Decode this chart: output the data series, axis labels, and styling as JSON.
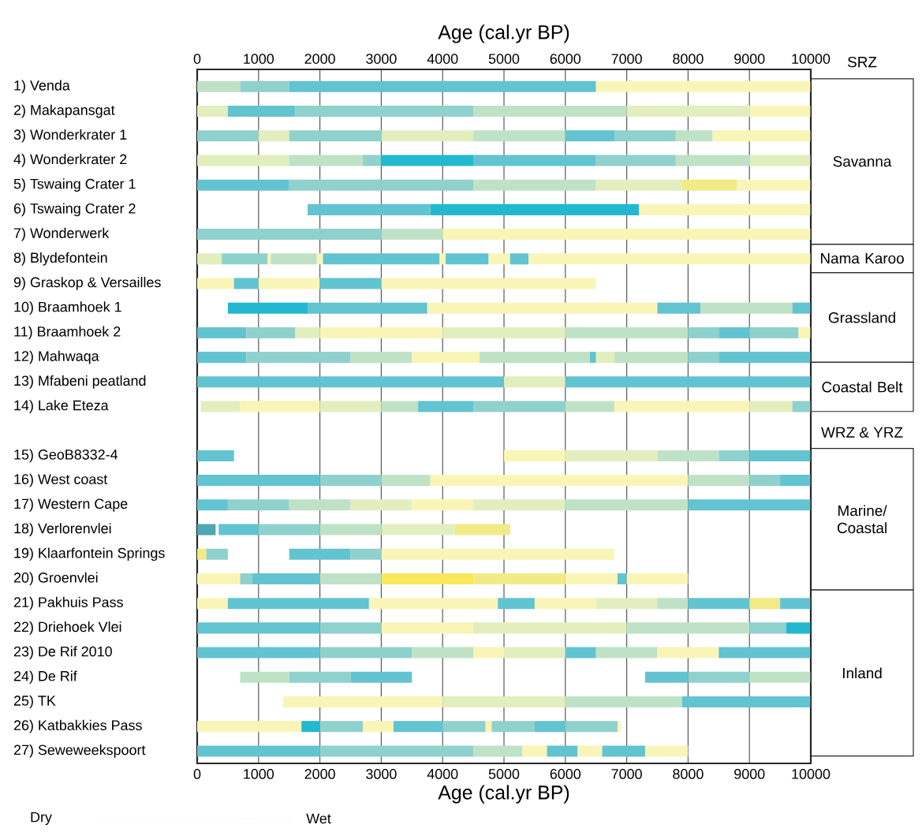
{
  "chart_data": {
    "type": "bar",
    "orientation": "horizontal",
    "grid": "x",
    "xlabel": "Age (cal.yr BP)",
    "x2label": "Age (cal.yr BP)",
    "xlim": [
      0,
      10000
    ],
    "xticks": [
      0,
      1000,
      2000,
      3000,
      4000,
      5000,
      6000,
      7000,
      8000,
      9000,
      10000
    ],
    "x2lim": [
      0,
      10000
    ],
    "x2ticks": [
      0,
      1000,
      2000,
      3000,
      4000,
      5000,
      6000,
      7000,
      8000,
      9000,
      10000
    ],
    "categories": [
      "1) Venda",
      "2) Makapansgat",
      "3) Wonderkrater 1",
      "4) Wonderkrater 2",
      "5) Tswaing Crater 1",
      "6) Tswaing Crater 2",
      "7) Wonderwerk",
      "8) Blydefontein",
      "9) Graskop & Versailles",
      "10) Braamhoek 1",
      "11) Braamhoek 2",
      "12) Mahwaqa",
      "13) Mfabeni peatland",
      "14) Lake Eteza",
      null,
      "15) GeoB8332-4",
      "16) West coast",
      "17) Western Cape",
      "18) Verlorenvlei",
      "19) Klaarfontein Springs",
      "20) Groenvlei",
      "21) Pakhuis Pass",
      "22) Driehoek Vlei",
      "23) De Rif 2010",
      "24) De Rif",
      "25) TK",
      "26) Katbakkies Pass",
      "27) Seweweekspoort"
    ],
    "series": [
      {
        "base": [
          0,
          0,
          0,
          0,
          0,
          1800,
          0,
          0,
          0,
          500,
          0,
          0,
          0,
          60,
          null,
          0,
          0,
          0,
          0,
          0,
          0,
          0,
          0,
          0,
          700,
          1400,
          0,
          0
        ],
        "values": [
          700,
          500,
          1000,
          1500,
          1500,
          2000,
          3000,
          400,
          600,
          1300,
          800,
          800,
          5000,
          640,
          null,
          600,
          2000,
          500,
          300,
          150,
          700,
          500,
          2000,
          2000,
          800,
          2600,
          1700,
          2000
        ],
        "colors": [
          "#bfe2c6",
          "#e2eebe",
          "#8fd1cc",
          "#e2eebe",
          "#62c3d1",
          "#62c3d1",
          "#8fd1cc",
          "#e2eebe",
          "#f9f5b7",
          "#22b8d0",
          "#62c3d1",
          "#62c3d1",
          "#62c3d1",
          "#e2eebe",
          null,
          "#62c3d1",
          "#62c3d1",
          "#62c3d1",
          "#4ea6b2",
          "#f2ea86",
          "#f9f5b7",
          "#f9f5b7",
          "#62c3d1",
          "#62c3d1",
          "#bfe2c6",
          "#f9f5b7",
          "#f9f5b7",
          "#62c3d1"
        ]
      },
      {
        "base": [
          700,
          500,
          1000,
          1500,
          1500,
          3800,
          3000,
          400,
          600,
          1800,
          800,
          800,
          5000,
          700,
          null,
          5000,
          2000,
          500,
          350,
          150,
          700,
          500,
          2000,
          2000,
          1500,
          4000,
          1700,
          2000
        ],
        "values": [
          800,
          1100,
          500,
          1200,
          3000,
          3400,
          1000,
          750,
          400,
          1950,
          800,
          1700,
          1000,
          1300,
          null,
          1000,
          1000,
          1000,
          650,
          350,
          200,
          2300,
          1000,
          1500,
          1000,
          2000,
          300,
          2500
        ],
        "colors": [
          "#8fd1cc",
          "#62c3d1",
          "#e2eebe",
          "#bfe2c6",
          "#8fd1cc",
          "#22b8d0",
          "#bfe2c6",
          "#8fd1cc",
          "#62c3d1",
          "#62c3d1",
          "#8fd1cc",
          "#8fd1cc",
          "#e2eebe",
          "#f9f5b7",
          null,
          "#f9f5b7",
          "#8fd1cc",
          "#8fd1cc",
          "#62c3d1",
          "#8fd1cc",
          "#8fd1cc",
          "#62c3d1",
          "#8fd1cc",
          "#8fd1cc",
          "#8fd1cc",
          "#e2eebe",
          "#22b8d0",
          "#8fd1cc"
        ]
      },
      {
        "base": [
          1500,
          1600,
          1500,
          2700,
          4500,
          7200,
          4000,
          1150,
          1000,
          3750,
          1600,
          2500,
          6000,
          2000,
          null,
          6000,
          3000,
          1500,
          1000,
          1500,
          900,
          2800,
          3000,
          3500,
          2500,
          6000,
          2000,
          4500
        ],
        "values": [
          5000,
          2900,
          1500,
          300,
          2000,
          2800,
          6000,
          50,
          1000,
          3750,
          400,
          1000,
          4000,
          1000,
          null,
          1500,
          800,
          1000,
          1000,
          1000,
          1100,
          2100,
          1500,
          1000,
          1000,
          1900,
          700,
          800
        ],
        "colors": [
          "#62c3d1",
          "#8fd1cc",
          "#8fd1cc",
          "#8fd1cc",
          "#bfe2c6",
          "#f9f5b7",
          "#f9f5b7",
          "#f9f5b7",
          "#f9f5b7",
          "#f9f5b7",
          "#e2eebe",
          "#bfe2c6",
          "#62c3d1",
          "#e2eebe",
          null,
          "#e2eebe",
          "#bfe2c6",
          "#bfe2c6",
          "#8fd1cc",
          "#62c3d1",
          "#62c3d1",
          "#f9f5b7",
          "#f9f5b7",
          "#bfe2c6",
          "#62c3d1",
          "#bfe2c6",
          "#8fd1cc",
          "#bfe2c6"
        ]
      },
      {
        "base": [
          6500,
          4500,
          3000,
          3000,
          6500,
          null,
          null,
          1200,
          2000,
          7500,
          2000,
          3500,
          null,
          3000,
          null,
          7500,
          3800,
          2500,
          2000,
          2500,
          2000,
          4900,
          4500,
          4500,
          7300,
          7900,
          2700,
          5300
        ],
        "values": [
          3500,
          2500,
          1500,
          1500,
          1400,
          null,
          null,
          750,
          1000,
          700,
          2000,
          1100,
          null,
          600,
          null,
          1000,
          4200,
          1000,
          1000,
          500,
          1000,
          600,
          2500,
          500,
          700,
          2100,
          500,
          400
        ],
        "colors": [
          "#f9f5b7",
          "#bfe2c6",
          "#e2eebe",
          "#22b8d0",
          "#e2eebe",
          null,
          null,
          "#bfe2c6",
          "#62c3d1",
          "#62c3d1",
          "#f9f5b7",
          "#f9f5b7",
          null,
          "#bfe2c6",
          null,
          "#bfe2c6",
          "#f9f5b7",
          "#e2eebe",
          "#bfe2c6",
          "#8fd1cc",
          "#bfe2c6",
          "#62c3d1",
          "#e2eebe",
          "#f9f5b7",
          "#62c3d1",
          "#62c3d1",
          "#f9f5b7",
          "#f9f5b7"
        ]
      },
      {
        "base": [
          null,
          7000,
          4500,
          4500,
          7900,
          null,
          null,
          1950,
          3000,
          8200,
          4000,
          4600,
          null,
          3600,
          null,
          8500,
          8000,
          3500,
          3000,
          3000,
          3000,
          5500,
          7000,
          5000,
          8000,
          null,
          3200,
          5700
        ],
        "values": [
          null,
          2000,
          1500,
          2000,
          900,
          null,
          null,
          100,
          3500,
          1500,
          2000,
          1800,
          null,
          900,
          null,
          500,
          1000,
          1000,
          1200,
          3800,
          1500,
          1000,
          2000,
          1000,
          1000,
          null,
          800,
          500
        ],
        "colors": [
          null,
          "#e2eebe",
          "#bfe2c6",
          "#62c3d1",
          "#f2ea86",
          null,
          null,
          "#f9f5b7",
          "#f9f5b7",
          "#bfe2c6",
          "#e2eebe",
          "#bfe2c6",
          null,
          "#62c3d1",
          null,
          "#8fd1cc",
          "#bfe2c6",
          "#f9f5b7",
          "#e2eebe",
          "#f9f5b7",
          "#f8e85a",
          "#f9f5b7",
          "#bfe2c6",
          "#e2eebe",
          "#8fd1cc",
          null,
          "#62c3d1",
          "#62c3d1"
        ]
      },
      {
        "base": [
          null,
          9000,
          6000,
          6500,
          8800,
          null,
          null,
          2050,
          null,
          9700,
          6000,
          6400,
          null,
          4500,
          null,
          9000,
          9000,
          4500,
          4200,
          null,
          4500,
          6500,
          9000,
          6000,
          9000,
          null,
          4000,
          6200
        ],
        "values": [
          null,
          1000,
          800,
          1300,
          1200,
          null,
          null,
          1900,
          null,
          300,
          2000,
          100,
          null,
          1500,
          null,
          1000,
          500,
          1500,
          900,
          null,
          1500,
          1000,
          600,
          500,
          1000,
          null,
          700,
          400
        ],
        "colors": [
          null,
          "#f9f5b7",
          "#62c3d1",
          "#8fd1cc",
          "#f9f5b7",
          null,
          null,
          "#62c3d1",
          null,
          "#62c3d1",
          "#bfe2c6",
          "#62c3d1",
          null,
          "#8fd1cc",
          null,
          "#62c3d1",
          "#8fd1cc",
          "#e2eebe",
          "#f2ea86",
          null,
          "#f2ea86",
          "#e2eebe",
          "#8fd1cc",
          "#62c3d1",
          "#bfe2c6",
          null,
          "#8fd1cc",
          "#f9f5b7"
        ]
      },
      {
        "base": [
          null,
          null,
          6800,
          7800,
          null,
          null,
          null,
          3950,
          null,
          null,
          8000,
          6500,
          null,
          6000,
          null,
          null,
          9500,
          6000,
          null,
          null,
          6000,
          7500,
          9600,
          6500,
          null,
          null,
          4700,
          6600
        ],
        "values": [
          null,
          null,
          1000,
          1200,
          null,
          null,
          null,
          100,
          null,
          null,
          500,
          300,
          null,
          800,
          null,
          null,
          500,
          2000,
          null,
          null,
          850,
          500,
          400,
          1000,
          null,
          null,
          100,
          700
        ],
        "colors": [
          null,
          null,
          "#8fd1cc",
          "#bfe2c6",
          null,
          null,
          null,
          "#f9f5b7",
          null,
          null,
          "#8fd1cc",
          "#e2eebe",
          null,
          "#bfe2c6",
          null,
          null,
          "#62c3d1",
          "#bfe2c6",
          null,
          null,
          "#f9f5b7",
          "#bfe2c6",
          "#22b8d0",
          "#bfe2c6",
          null,
          null,
          "#f9f5b7",
          "#62c3d1"
        ]
      },
      {
        "base": [
          null,
          null,
          7800,
          9000,
          null,
          null,
          null,
          4050,
          null,
          null,
          8500,
          6800,
          null,
          6800,
          null,
          null,
          null,
          8000,
          null,
          null,
          6850,
          8000,
          null,
          7500,
          null,
          null,
          4800,
          7300
        ],
        "values": [
          null,
          null,
          600,
          1000,
          null,
          null,
          null,
          700,
          null,
          null,
          500,
          1200,
          null,
          2200,
          null,
          null,
          null,
          2000,
          null,
          null,
          150,
          1000,
          null,
          1000,
          null,
          null,
          700,
          700
        ],
        "colors": [
          null,
          null,
          "#bfe2c6",
          "#e2eebe",
          null,
          null,
          null,
          "#62c3d1",
          null,
          null,
          "#62c3d1",
          "#bfe2c6",
          null,
          "#f9f5b7",
          null,
          null,
          null,
          "#62c3d1",
          null,
          null,
          "#62c3d1",
          "#62c3d1",
          null,
          "#f9f5b7",
          null,
          null,
          "#8fd1cc",
          "#f9f5b7"
        ]
      },
      {
        "base": [
          null,
          null,
          8400,
          null,
          null,
          null,
          null,
          4750,
          null,
          null,
          9000,
          8000,
          null,
          9000,
          null,
          null,
          null,
          null,
          null,
          null,
          7000,
          9000,
          null,
          8500,
          null,
          null,
          5500,
          null
        ],
        "values": [
          null,
          null,
          1600,
          null,
          null,
          null,
          null,
          350,
          null,
          null,
          800,
          500,
          null,
          700,
          null,
          null,
          null,
          null,
          null,
          null,
          1000,
          500,
          null,
          1500,
          null,
          null,
          500,
          null
        ],
        "colors": [
          null,
          null,
          "#f9f5b7",
          null,
          null,
          null,
          null,
          "#f9f5b7",
          null,
          null,
          "#8fd1cc",
          "#8fd1cc",
          null,
          "#e2eebe",
          null,
          null,
          null,
          null,
          null,
          null,
          "#f9f5b7",
          "#f2ea86",
          null,
          "#62c3d1",
          null,
          null,
          "#62c3d1",
          null
        ]
      },
      {
        "base": [
          null,
          null,
          null,
          null,
          null,
          null,
          null,
          5100,
          null,
          null,
          9800,
          8500,
          null,
          9700,
          null,
          null,
          null,
          null,
          null,
          null,
          null,
          9500,
          null,
          null,
          null,
          null,
          6000,
          null
        ],
        "values": [
          null,
          null,
          null,
          null,
          null,
          null,
          null,
          300,
          null,
          null,
          200,
          1500,
          null,
          300,
          null,
          null,
          null,
          null,
          null,
          null,
          null,
          500,
          null,
          null,
          null,
          null,
          850,
          null
        ],
        "colors": [
          null,
          null,
          null,
          null,
          null,
          null,
          null,
          "#62c3d1",
          null,
          null,
          "#f9f5b7",
          "#62c3d1",
          null,
          "#8fd1cc",
          null,
          null,
          null,
          null,
          null,
          null,
          null,
          "#62c3d1",
          null,
          null,
          null,
          null,
          "#8fd1cc",
          null
        ]
      },
      {
        "base": [
          null,
          null,
          null,
          null,
          null,
          null,
          null,
          5400,
          null,
          null,
          null,
          null,
          null,
          null,
          null,
          null,
          null,
          null,
          null,
          null,
          null,
          null,
          null,
          null,
          null,
          null,
          6850,
          null
        ],
        "values": [
          null,
          null,
          null,
          null,
          null,
          null,
          null,
          4600,
          null,
          null,
          null,
          null,
          null,
          null,
          null,
          null,
          null,
          null,
          null,
          null,
          null,
          null,
          null,
          null,
          null,
          null,
          50,
          null
        ],
        "colors": [
          null,
          null,
          null,
          null,
          null,
          null,
          null,
          "#f9f5b7",
          null,
          null,
          null,
          null,
          null,
          null,
          null,
          null,
          null,
          null,
          null,
          null,
          null,
          null,
          null,
          null,
          null,
          null,
          "#f9f5b7",
          null
        ]
      }
    ],
    "annotations": [
      "SRZ",
      "Savanna",
      "Nama Karoo",
      "Grassland",
      "Coastal Belt",
      "WRZ & YRZ",
      "Marine/ Coastal",
      "Inland",
      "Dry",
      "Wet"
    ]
  }
}
